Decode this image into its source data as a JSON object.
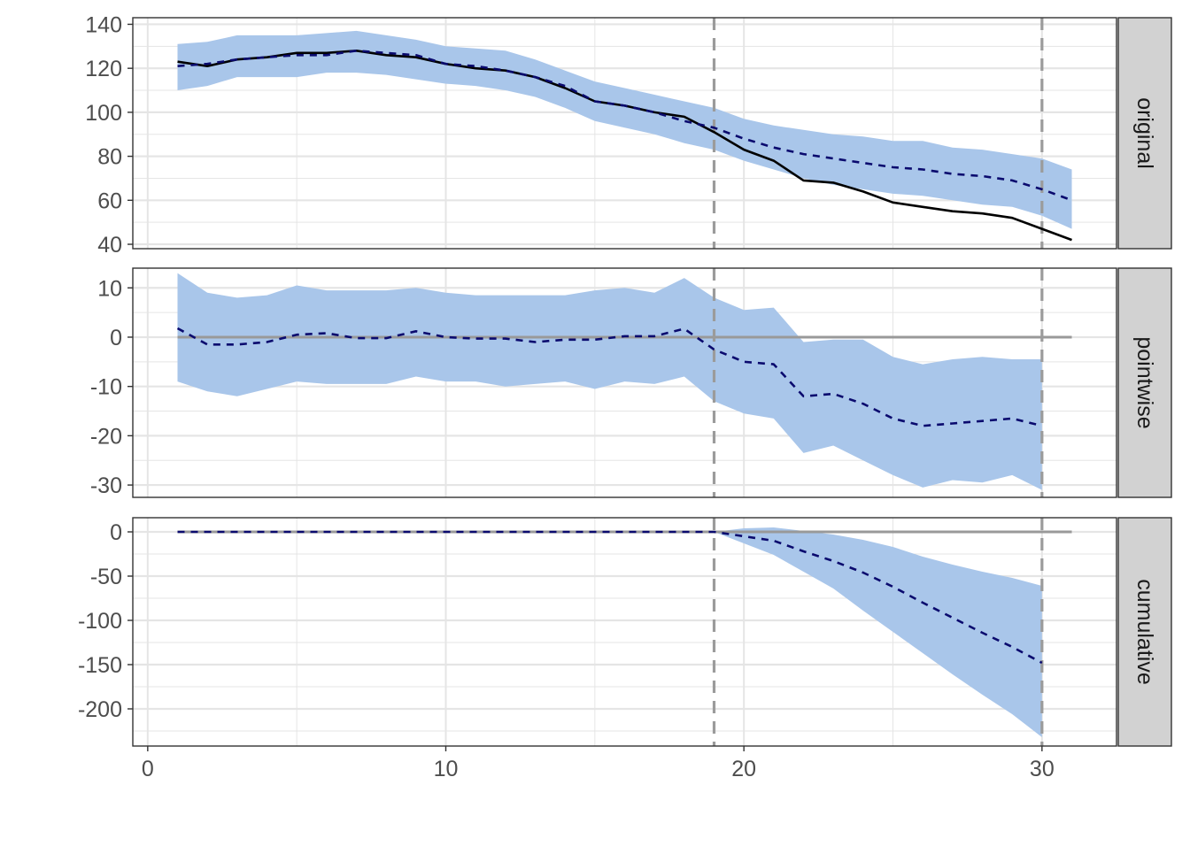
{
  "chart_data": {
    "type": "line",
    "facet_type": "impact-plot (CausalImpact style, 3 facets)",
    "shared_x": {
      "ticks": [
        0,
        10,
        20,
        30
      ],
      "tick_labels": [
        "0",
        "10",
        "20",
        "30"
      ],
      "xlim": [
        -0.5,
        32.5
      ],
      "grid": true
    },
    "vlines": [
      19,
      30
    ],
    "colors": {
      "band": "#a9c6ea",
      "predicted": "#0a0a6e",
      "observed": "#000000",
      "zero_line": "#999999",
      "vline": "#9b9b9b",
      "strip_bg": "#d2d2d2",
      "grid": "#e5e5e5"
    },
    "panels": [
      {
        "strip_label": "original",
        "ylim": [
          38,
          143
        ],
        "y_ticks": [
          40,
          60,
          80,
          100,
          120,
          140
        ],
        "y_tick_labels": [
          "40",
          "60",
          "80",
          "100",
          "120",
          "140"
        ],
        "grid": true,
        "series": [
          {
            "role": "interval",
            "x": [
              1,
              2,
              3,
              4,
              5,
              6,
              7,
              8,
              9,
              10,
              11,
              12,
              13,
              14,
              15,
              16,
              17,
              18,
              19,
              20,
              21,
              22,
              23,
              24,
              25,
              26,
              27,
              28,
              29,
              30,
              31
            ],
            "upper": [
              131,
              132,
              135,
              135,
              135,
              136,
              137,
              135,
              133,
              130,
              129,
              128,
              124,
              119,
              114,
              111,
              108,
              105,
              102,
              97,
              94,
              92,
              90,
              89,
              87,
              87,
              84,
              83,
              81,
              79,
              74
            ],
            "lower": [
              110,
              112,
              116,
              116,
              116,
              118,
              118,
              117,
              115,
              113,
              112,
              110,
              107,
              102,
              96,
              93,
              90,
              86,
              83,
              78,
              74,
              70,
              67,
              65,
              63,
              62,
              60,
              58,
              57,
              53,
              47
            ]
          },
          {
            "role": "predicted",
            "x": [
              1,
              2,
              3,
              4,
              5,
              6,
              7,
              8,
              9,
              10,
              11,
              12,
              13,
              14,
              15,
              16,
              17,
              18,
              19,
              20,
              21,
              22,
              23,
              24,
              25,
              26,
              27,
              28,
              29,
              30,
              31
            ],
            "values": [
              121,
              122,
              124,
              125,
              126,
              126,
              128,
              127,
              126,
              122,
              121,
              119,
              116,
              112,
              105,
              103,
              100,
              96,
              93,
              88,
              84,
              81,
              79,
              77,
              75,
              74,
              72,
              71,
              69,
              65,
              60
            ]
          },
          {
            "role": "observed",
            "x": [
              1,
              2,
              3,
              4,
              5,
              6,
              7,
              8,
              9,
              10,
              11,
              12,
              13,
              14,
              15,
              16,
              17,
              18,
              19,
              20,
              21,
              22,
              23,
              24,
              25,
              26,
              27,
              28,
              29,
              30,
              31
            ],
            "values": [
              123,
              121,
              124,
              125,
              127,
              127,
              128,
              126,
              125,
              122,
              120,
              119,
              116,
              111,
              105,
              103,
              100,
              98,
              91,
              83,
              78,
              69,
              68,
              64,
              59,
              57,
              55,
              54,
              52,
              47,
              42
            ]
          }
        ]
      },
      {
        "strip_label": "pointwise",
        "ylim": [
          -32.5,
          14
        ],
        "y_ticks": [
          -30,
          -20,
          -10,
          0,
          10
        ],
        "y_tick_labels": [
          "-30",
          "-20",
          "-10",
          "0",
          "10"
        ],
        "grid": true,
        "zero_line": {
          "value": 0,
          "x_range": [
            1,
            31
          ]
        },
        "series": [
          {
            "role": "interval",
            "x": [
              1,
              2,
              3,
              4,
              5,
              6,
              7,
              8,
              9,
              10,
              11,
              12,
              13,
              14,
              15,
              16,
              17,
              18,
              19,
              20,
              21,
              22,
              23,
              24,
              25,
              26,
              27,
              28,
              29,
              30
            ],
            "upper": [
              13,
              9,
              8,
              8.5,
              10.5,
              9.5,
              9.5,
              9.5,
              10,
              9,
              8.5,
              8.5,
              8.5,
              8.5,
              9.5,
              10,
              9,
              12,
              8,
              5.5,
              6,
              -1,
              -0.5,
              -0.5,
              -4,
              -5.5,
              -4.5,
              -4,
              -4.5,
              -4.5
            ],
            "lower": [
              -9,
              -11,
              -12,
              -10.5,
              -9,
              -9.5,
              -9.5,
              -9.5,
              -8,
              -9,
              -9,
              -10,
              -9.5,
              -9,
              -10.5,
              -9,
              -9.5,
              -8,
              -13,
              -15.5,
              -16.5,
              -23.5,
              -22,
              -25,
              -28,
              -30.5,
              -29,
              -29.5,
              -28,
              -31
            ]
          },
          {
            "role": "predicted",
            "x": [
              1,
              2,
              3,
              4,
              5,
              6,
              7,
              8,
              9,
              10,
              11,
              12,
              13,
              14,
              15,
              16,
              17,
              18,
              19,
              20,
              21,
              22,
              23,
              24,
              25,
              26,
              27,
              28,
              29,
              30
            ],
            "values": [
              1.8,
              -1.5,
              -1.5,
              -1,
              0.5,
              0.8,
              -0.2,
              -0.2,
              1.2,
              0,
              -0.3,
              -0.3,
              -1,
              -0.5,
              -0.5,
              0.2,
              0.2,
              1.7,
              -2.5,
              -5,
              -5.5,
              -12,
              -11.5,
              -13.5,
              -16.5,
              -18,
              -17.5,
              -17,
              -16.5,
              -18
            ]
          }
        ]
      },
      {
        "strip_label": "cumulative",
        "ylim": [
          -242,
          16
        ],
        "y_ticks": [
          -200,
          -150,
          -100,
          -50,
          0
        ],
        "y_tick_labels": [
          "-200",
          "-150",
          "-100",
          "-50",
          "0"
        ],
        "grid": true,
        "zero_line": {
          "value": 0,
          "x_range": [
            1,
            31
          ]
        },
        "series": [
          {
            "role": "interval",
            "x": [
              1,
              2,
              3,
              4,
              5,
              6,
              7,
              8,
              9,
              10,
              11,
              12,
              13,
              14,
              15,
              16,
              17,
              18,
              19,
              20,
              21,
              22,
              23,
              24,
              25,
              26,
              27,
              28,
              29,
              30
            ],
            "upper": [
              0,
              0,
              0,
              0,
              0,
              0,
              0,
              0,
              0,
              0,
              0,
              0,
              0,
              0,
              0,
              0,
              0,
              0,
              0,
              4,
              5,
              1,
              -3,
              -9,
              -17,
              -28,
              -37,
              -45,
              -52,
              -61
            ],
            "lower": [
              0,
              0,
              0,
              0,
              0,
              0,
              0,
              0,
              0,
              0,
              0,
              0,
              0,
              0,
              0,
              0,
              0,
              0,
              0,
              -13,
              -26,
              -45,
              -64,
              -89,
              -113,
              -137,
              -161,
              -184,
              -206,
              -232
            ]
          },
          {
            "role": "predicted",
            "x": [
              1,
              2,
              3,
              4,
              5,
              6,
              7,
              8,
              9,
              10,
              11,
              12,
              13,
              14,
              15,
              16,
              17,
              18,
              19,
              20,
              21,
              22,
              23,
              24,
              25,
              26,
              27,
              28,
              29,
              30
            ],
            "values": [
              0,
              0,
              0,
              0,
              0,
              0,
              0,
              0,
              0,
              0,
              0,
              0,
              0,
              0,
              0,
              0,
              0,
              0,
              0,
              -5,
              -10,
              -22,
              -33,
              -46,
              -62,
              -80,
              -97,
              -114,
              -130,
              -148
            ]
          }
        ]
      }
    ]
  }
}
